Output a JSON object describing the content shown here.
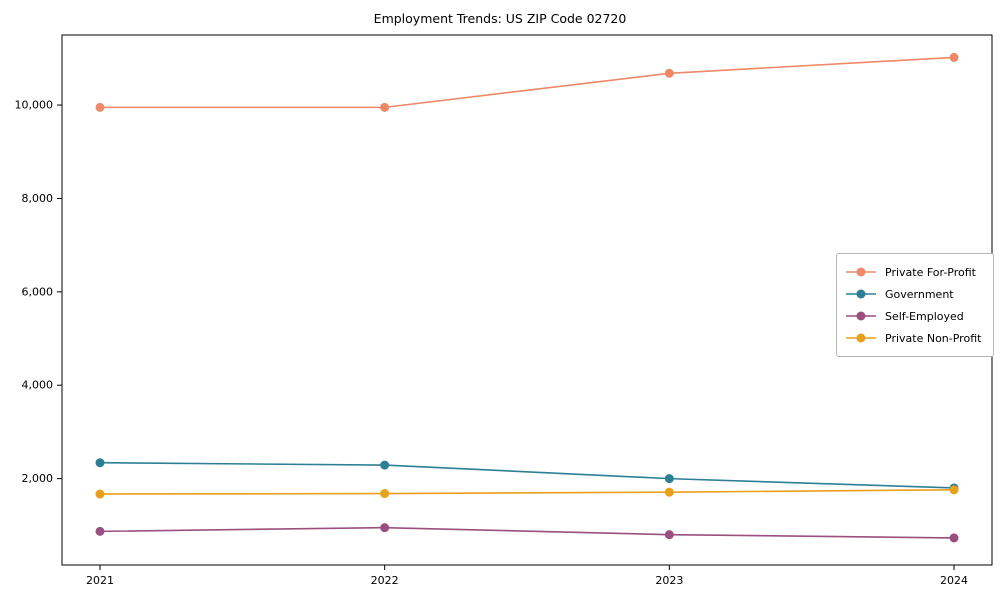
{
  "title": "Employment Trends: US ZIP Code 02720",
  "chart_data": {
    "type": "line",
    "x": [
      "2021",
      "2022",
      "2023",
      "2024"
    ],
    "series": [
      {
        "name": "Private For-Profit",
        "color": "#EE8866",
        "values": [
          9950,
          9950,
          10680,
          11020
        ]
      },
      {
        "name": "Government",
        "color": "#2D7F95",
        "values": [
          2340,
          2290,
          2000,
          1800
        ]
      },
      {
        "name": "Self-Employed",
        "color": "#9A4F7E",
        "values": [
          870,
          950,
          800,
          730
        ]
      },
      {
        "name": "Private Non-Profit",
        "color": "#E9A01B",
        "values": [
          1670,
          1680,
          1710,
          1760
        ]
      }
    ],
    "yticks": [
      2000,
      4000,
      6000,
      8000,
      10000
    ],
    "ytick_labels": [
      "2,000",
      "4,000",
      "6,000",
      "8,000",
      "10,000"
    ],
    "xtick_labels": [
      "2021",
      "2022",
      "2023",
      "2024"
    ],
    "ylim": [
      150,
      11500
    ],
    "grid": false,
    "legend_position": "middle-right",
    "axis_color": "#000000",
    "background_color": "#ffffff"
  }
}
